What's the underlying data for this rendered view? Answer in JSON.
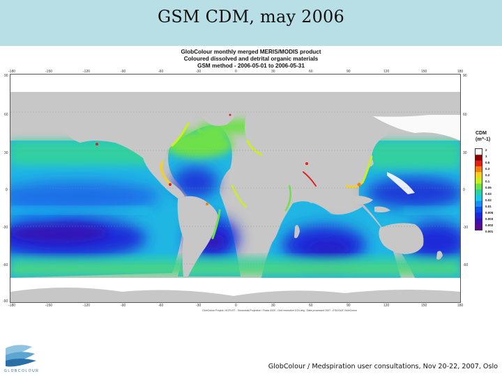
{
  "slide": {
    "title": "GSM CDM, may 2006",
    "footer": "GlobColour / Medspiration user consultations, Nov 20-22, 2007, Oslo"
  },
  "figure": {
    "title_lines": [
      "GlobColour monthly merged MERIS/MODIS product",
      "Coloured dissolved and detrital organic materials",
      "GSM method - 2006-05-01 to 2006-05-31"
    ],
    "credits": "GlobColour Project / ACRI-ST - Sinusoidal Projection / Rows 4320 - Grid resolution 1/24 deg - Data processed 2007 - ESA DUE GlobColour",
    "lon_labels": [
      "-180",
      "-150",
      "-120",
      "-90",
      "-60",
      "-30",
      "0",
      "30",
      "60",
      "90",
      "120",
      "150",
      "180"
    ],
    "lat_labels": [
      "90",
      "60",
      "30",
      "0",
      "-30",
      "-60",
      "-90"
    ]
  },
  "colorbar": {
    "title": "CDM",
    "unit": "(m^-1)",
    "labels": [
      "2",
      "1",
      "0.5",
      "0.3",
      "0.2",
      "0.1",
      "0.05",
      "0.03",
      "0.02",
      "0.01",
      "0.005",
      "0.003",
      "0.002",
      "0.001"
    ],
    "colors": [
      "#ffffff",
      "#8b0000",
      "#e0201a",
      "#f07f10",
      "#f5d020",
      "#c8f020",
      "#6ee04a",
      "#30d0a0",
      "#18c8e8",
      "#1890f0",
      "#1050e8",
      "#1a2ad8",
      "#3a10b0",
      "#5a0a90"
    ]
  },
  "logo": {
    "text": "GLOBCOLOUR"
  },
  "colors": {
    "land": "#c7c7c7",
    "ice": "#ffffff",
    "band": "#b9dfe6",
    "deep_ocean": "#1a2ad8",
    "coastal": "#6ee04a"
  }
}
